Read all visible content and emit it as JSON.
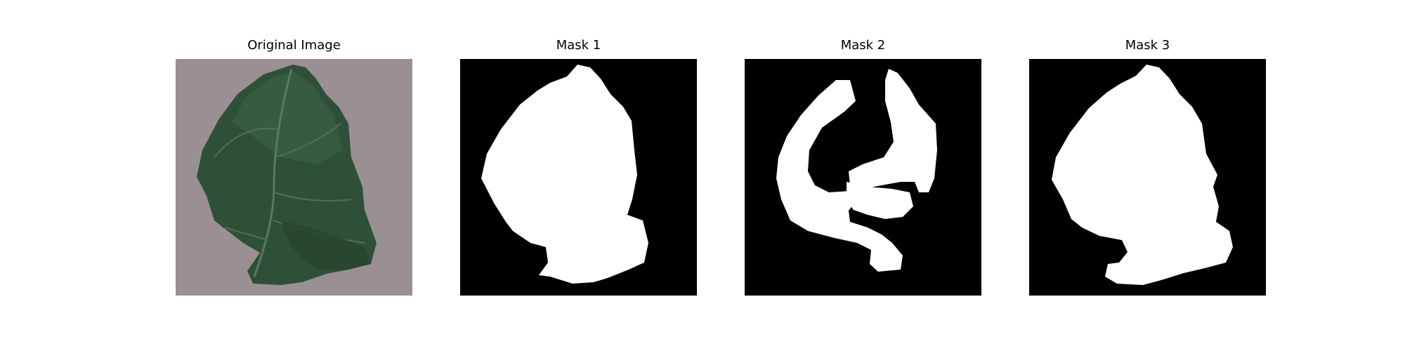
{
  "figure": {
    "panels": [
      {
        "title": "Original Image",
        "kind": "photo",
        "subject": "leaf-photo"
      },
      {
        "title": "Mask 1",
        "kind": "mask"
      },
      {
        "title": "Mask 2",
        "kind": "mask"
      },
      {
        "title": "Mask 3",
        "kind": "mask"
      }
    ]
  },
  "colors": {
    "background": "#ffffff",
    "photo_background": "#9a9094",
    "leaf_dark": "#2c4a35",
    "leaf_mid": "#3e6447",
    "leaf_vein": "#5c7a61",
    "mask_background": "#000000",
    "mask_foreground": "#ffffff"
  }
}
